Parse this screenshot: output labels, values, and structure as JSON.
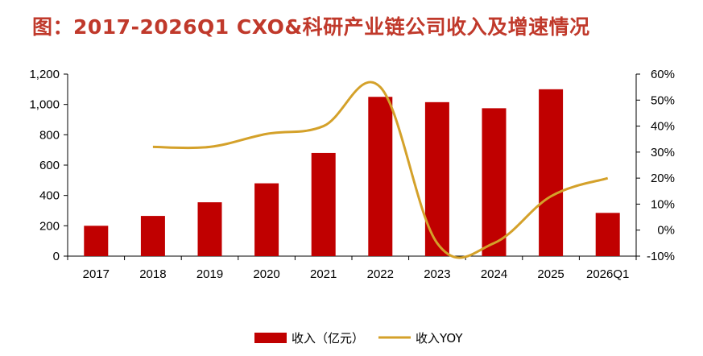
{
  "title": "图：2017-2026Q1 CXO&科研产业链公司收入及增速情况",
  "chart_data": {
    "type": "bar",
    "categories": [
      "2017",
      "2018",
      "2019",
      "2020",
      "2021",
      "2022",
      "2023",
      "2024",
      "2025",
      "2026Q1"
    ],
    "series": [
      {
        "name": "收入（亿元）",
        "type": "bar",
        "axis": "left",
        "color": "#c00000",
        "values": [
          200,
          265,
          355,
          480,
          680,
          1050,
          1015,
          975,
          1100,
          285
        ]
      },
      {
        "name": "收入YOY",
        "type": "line",
        "axis": "right",
        "color": "#d4a12a",
        "values": [
          null,
          0.32,
          0.32,
          0.37,
          0.4,
          0.55,
          -0.05,
          -0.05,
          0.13,
          0.2
        ]
      }
    ],
    "left_axis": {
      "ylim": [
        0,
        1200
      ],
      "ticks": [
        0,
        200,
        400,
        600,
        800,
        1000,
        1200
      ],
      "tick_labels": [
        "0",
        "200",
        "400",
        "600",
        "800",
        "1,000",
        "1,200"
      ]
    },
    "right_axis": {
      "ylim": [
        -0.1,
        0.6
      ],
      "ticks": [
        -0.1,
        0,
        0.1,
        0.2,
        0.3,
        0.4,
        0.5,
        0.6
      ],
      "tick_labels": [
        "-10%",
        "0%",
        "10%",
        "20%",
        "30%",
        "40%",
        "50%",
        "60%"
      ]
    },
    "grid": false,
    "legend_position": "bottom"
  }
}
